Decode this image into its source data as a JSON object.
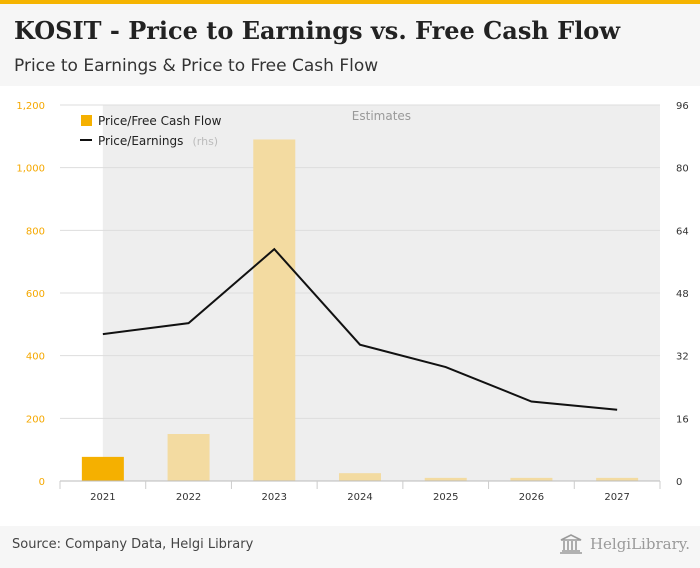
{
  "header": {
    "title": "KOSIT - Price to Earnings vs. Free Cash Flow",
    "subtitle": "Price to Earnings & Price to Free Cash Flow"
  },
  "footer": {
    "source": "Source: Company Data, Helgi Library",
    "logo_text": "HelgiLibrary."
  },
  "colors": {
    "bar_actual": "#f5b000",
    "bar_estimate": "#f3dba1",
    "line": "#111111",
    "estimate_shade": "#eeeeee",
    "left_axis": "#f5a800"
  },
  "chart_data": {
    "type": "bar+line",
    "categories": [
      "2021",
      "2022",
      "2023",
      "2024",
      "2025",
      "2026",
      "2027"
    ],
    "estimates_label": "Estimates",
    "estimates_from_index": 1,
    "left_axis": {
      "ylim": [
        0,
        1200
      ],
      "ticks": [
        "0",
        "200",
        "400",
        "600",
        "800",
        "1,000",
        "1,200"
      ]
    },
    "right_axis": {
      "ylim": [
        0,
        96
      ],
      "ticks": [
        "0",
        "16",
        "32",
        "48",
        "64",
        "80",
        "96"
      ]
    },
    "series": [
      {
        "name": "Price/Free Cash Flow",
        "type": "bar",
        "axis": "left",
        "values": [
          77,
          150,
          1090,
          25,
          10,
          10,
          10
        ]
      },
      {
        "name": "Price/Earnings",
        "suffix": "(rhs)",
        "type": "line",
        "axis": "right",
        "values": [
          37.5,
          40.3,
          59.2,
          34.8,
          29.1,
          20.3,
          18.2
        ]
      }
    ],
    "legend_position": "top-left",
    "grid": true
  }
}
